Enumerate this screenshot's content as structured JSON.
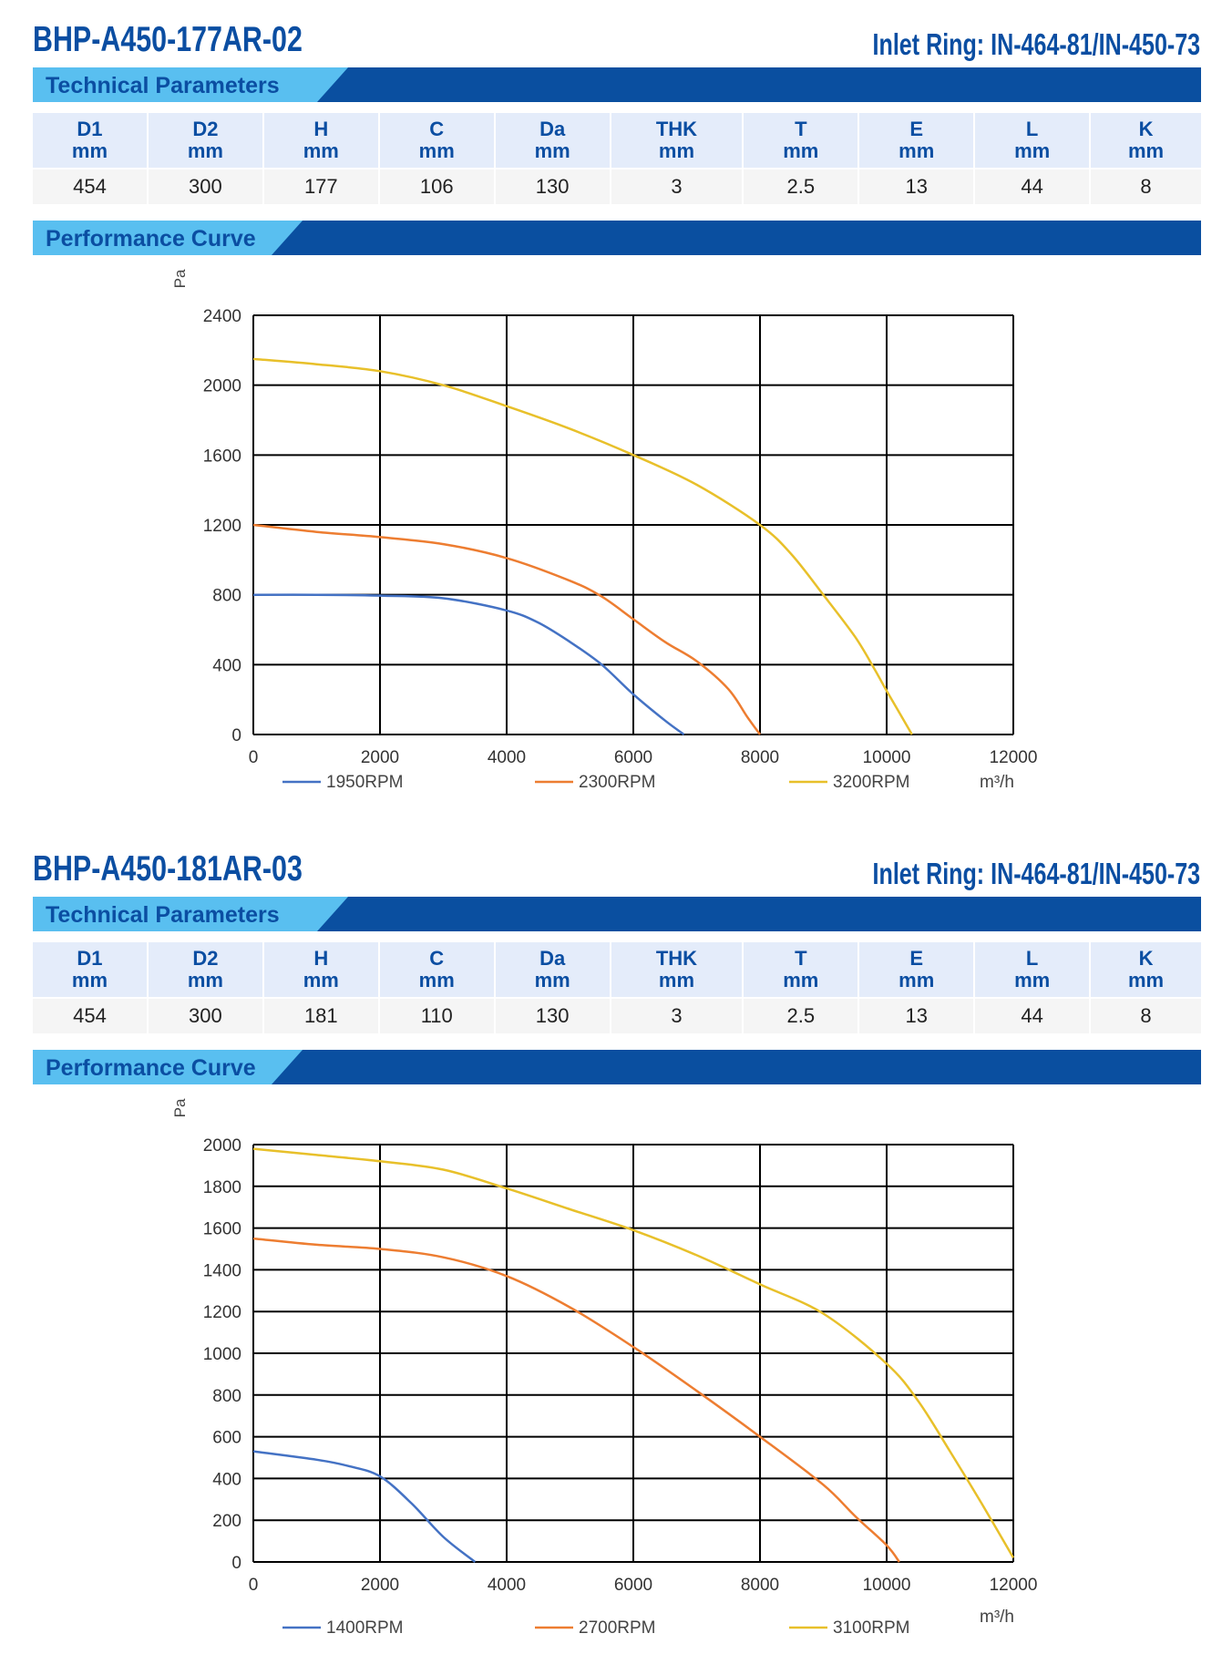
{
  "products": [
    {
      "model": "BHP-A450-177AR-02",
      "inlet_ring": "Inlet Ring: IN-464-81/IN-450-73",
      "tech_title": "Technical Parameters",
      "perf_title": "Performance Curve",
      "param_headers": [
        {
          "name": "D1",
          "unit": "mm"
        },
        {
          "name": "D2",
          "unit": "mm"
        },
        {
          "name": "H",
          "unit": "mm"
        },
        {
          "name": "C",
          "unit": "mm"
        },
        {
          "name": "Da",
          "unit": "mm"
        },
        {
          "name": "THK",
          "unit": "mm"
        },
        {
          "name": "T",
          "unit": "mm"
        },
        {
          "name": "E",
          "unit": "mm"
        },
        {
          "name": "L",
          "unit": "mm"
        },
        {
          "name": "K",
          "unit": "mm"
        }
      ],
      "param_values": [
        "454",
        "300",
        "177",
        "106",
        "130",
        "3",
        "2.5",
        "13",
        "44",
        "8"
      ]
    },
    {
      "model": "BHP-A450-181AR-03",
      "inlet_ring": "Inlet Ring: IN-464-81/IN-450-73",
      "tech_title": "Technical Parameters",
      "perf_title": "Performance Curve",
      "param_headers": [
        {
          "name": "D1",
          "unit": "mm"
        },
        {
          "name": "D2",
          "unit": "mm"
        },
        {
          "name": "H",
          "unit": "mm"
        },
        {
          "name": "C",
          "unit": "mm"
        },
        {
          "name": "Da",
          "unit": "mm"
        },
        {
          "name": "THK",
          "unit": "mm"
        },
        {
          "name": "T",
          "unit": "mm"
        },
        {
          "name": "E",
          "unit": "mm"
        },
        {
          "name": "L",
          "unit": "mm"
        },
        {
          "name": "K",
          "unit": "mm"
        }
      ],
      "param_values": [
        "454",
        "300",
        "181",
        "110",
        "130",
        "3",
        "2.5",
        "13",
        "44",
        "8"
      ]
    }
  ],
  "chart_data": [
    {
      "type": "line",
      "ylabel": "Pa",
      "xlabel": "m³/h",
      "xlim": [
        0,
        12000
      ],
      "ylim": [
        0,
        2400
      ],
      "x_ticks": [
        0,
        2000,
        4000,
        6000,
        8000,
        10000,
        12000
      ],
      "y_ticks": [
        0,
        400,
        800,
        1200,
        1600,
        2000,
        2400
      ],
      "grid": true,
      "legend_position": "bottom",
      "series": [
        {
          "name": "1950RPM",
          "color": "#4472c4",
          "x": [
            0,
            1000,
            2000,
            3000,
            4000,
            4500,
            5000,
            5500,
            6000,
            6500,
            6800
          ],
          "y": [
            800,
            800,
            795,
            780,
            710,
            640,
            530,
            400,
            230,
            80,
            0
          ]
        },
        {
          "name": "2300RPM",
          "color": "#ed7d31",
          "x": [
            0,
            1000,
            2000,
            3000,
            4000,
            5000,
            5500,
            6000,
            6500,
            7000,
            7500,
            7800,
            8000
          ],
          "y": [
            1200,
            1160,
            1130,
            1090,
            1010,
            880,
            790,
            660,
            530,
            420,
            260,
            100,
            0
          ]
        },
        {
          "name": "3200RPM",
          "color": "#e8c02a",
          "x": [
            0,
            1000,
            2000,
            3000,
            4000,
            5000,
            6000,
            7000,
            8000,
            8500,
            9000,
            9500,
            9800,
            10000,
            10400
          ],
          "y": [
            2150,
            2120,
            2080,
            2000,
            1880,
            1750,
            1600,
            1430,
            1200,
            1030,
            800,
            560,
            380,
            250,
            0
          ]
        }
      ]
    },
    {
      "type": "line",
      "ylabel": "Pa",
      "xlabel": "m³/h",
      "xlim": [
        0,
        12000
      ],
      "ylim": [
        0,
        2000
      ],
      "x_ticks": [
        0,
        2000,
        4000,
        6000,
        8000,
        10000,
        12000
      ],
      "y_ticks": [
        0,
        200,
        400,
        600,
        800,
        1000,
        1200,
        1400,
        1600,
        1800,
        2000
      ],
      "grid": true,
      "legend_position": "bottom",
      "series": [
        {
          "name": "1400RPM",
          "color": "#4472c4",
          "x": [
            0,
            1000,
            1500,
            2000,
            2500,
            3000,
            3500
          ],
          "y": [
            530,
            490,
            460,
            410,
            280,
            120,
            0
          ]
        },
        {
          "name": "2700RPM",
          "color": "#ed7d31",
          "x": [
            0,
            1000,
            2000,
            3000,
            4000,
            5000,
            6000,
            7000,
            8000,
            9000,
            9500,
            10000,
            10200
          ],
          "y": [
            1550,
            1520,
            1500,
            1460,
            1370,
            1220,
            1030,
            820,
            600,
            370,
            220,
            80,
            0
          ]
        },
        {
          "name": "3100RPM",
          "color": "#e8c02a",
          "x": [
            0,
            1000,
            2000,
            3000,
            4000,
            5000,
            6000,
            7000,
            8000,
            9000,
            10000,
            10500,
            11000,
            11500,
            12000
          ],
          "y": [
            1980,
            1950,
            1920,
            1880,
            1790,
            1690,
            1590,
            1470,
            1330,
            1190,
            950,
            770,
            530,
            280,
            20
          ]
        }
      ]
    }
  ]
}
